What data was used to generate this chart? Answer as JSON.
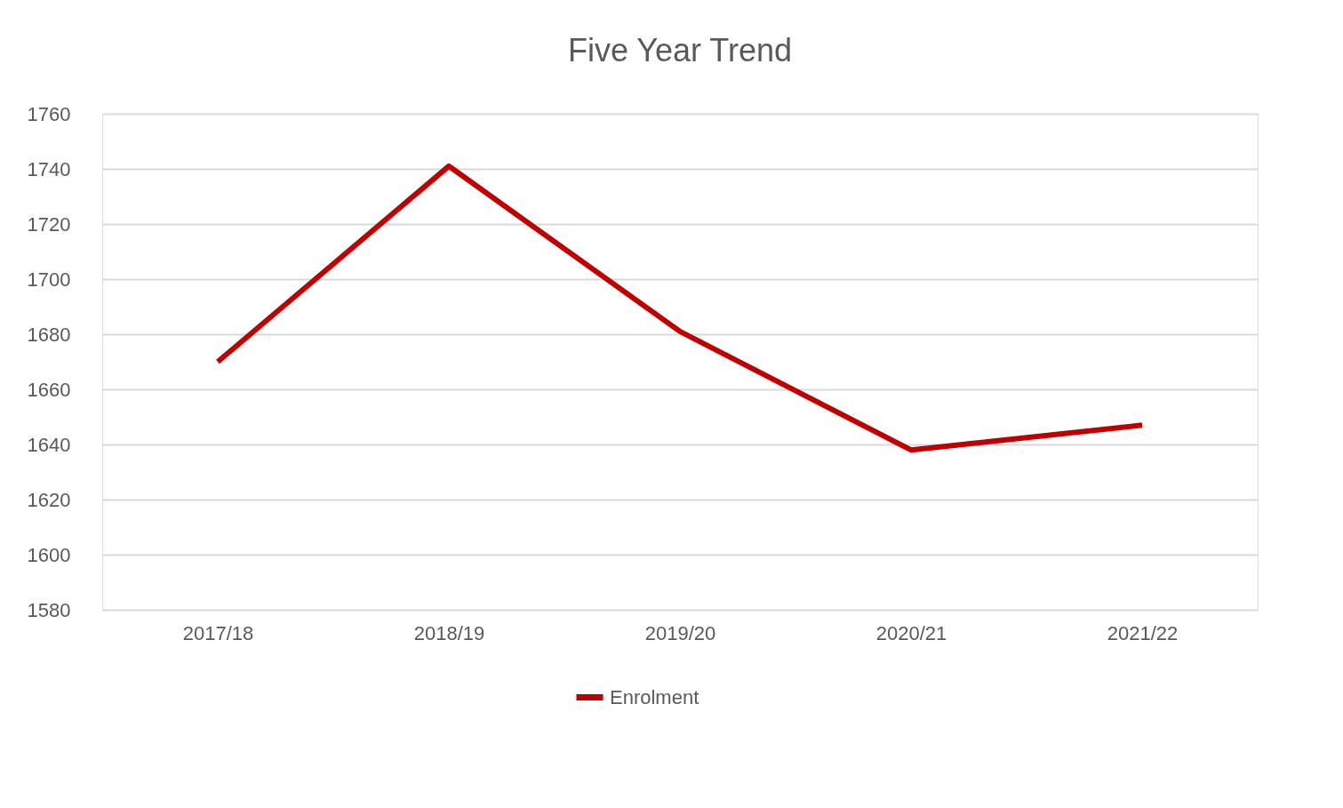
{
  "chart_data": {
    "type": "line",
    "title": "Five Year Trend",
    "categories": [
      "2017/18",
      "2018/19",
      "2019/20",
      "2020/21",
      "2021/22"
    ],
    "series": [
      {
        "name": "Enrolment",
        "color": "#c00000",
        "values": [
          1670,
          1741,
          1681,
          1638,
          1647
        ]
      }
    ],
    "ylim": [
      1580,
      1760
    ],
    "yticks": [
      1580,
      1600,
      1620,
      1640,
      1660,
      1680,
      1700,
      1720,
      1740,
      1760
    ],
    "grid": "y",
    "legend": "bottom",
    "marker": "none",
    "line_style": "solid"
  }
}
